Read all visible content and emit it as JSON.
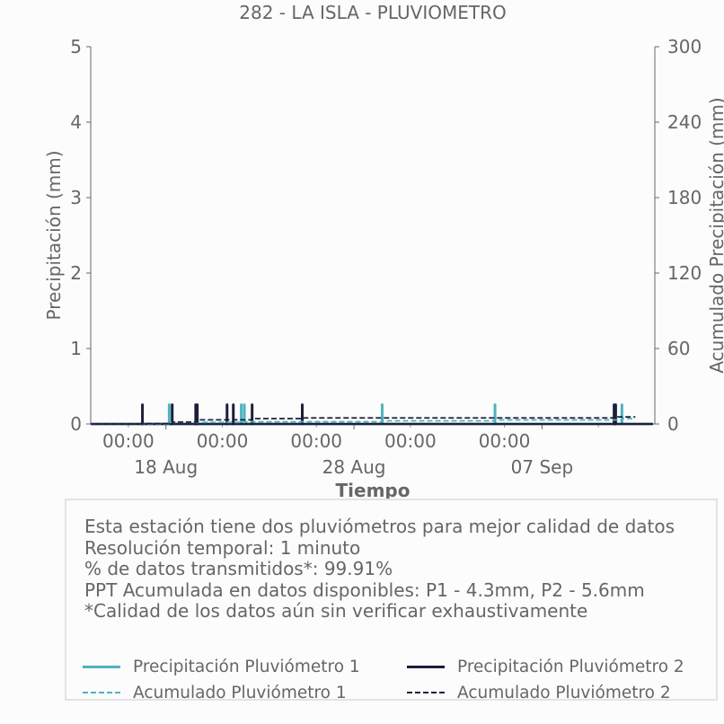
{
  "chart_data": {
    "type": "line",
    "title": "282 - LA ISLA - PLUVIOMETRO",
    "xlabel": "Tiempo",
    "ylabel_left": "Precipitación (mm)",
    "ylabel_right": "Acumulado Precipitación (mm)",
    "ylim_left": [
      0,
      5
    ],
    "ylim_right": [
      0,
      300
    ],
    "yticks_left": [
      "0",
      "1",
      "2",
      "3",
      "4",
      "5"
    ],
    "yticks_right": [
      "0",
      "60",
      "120",
      "180",
      "240",
      "300"
    ],
    "xlim_days": [
      -4.0,
      26.0
    ],
    "x_tick_time_labels": [
      "00:00",
      "00:00",
      "00:00",
      "00:00",
      "00:00"
    ],
    "x_tick_date_labels": [
      "18 Aug",
      "28 Aug",
      "07 Sep"
    ],
    "grid": false,
    "series": [
      {
        "name": "Precipitación Pluviómetro 1",
        "color": "#4eb3bd",
        "style": "solid",
        "x": [
          "2025-08-18 04:10",
          "2025-08-22 00:10",
          "2025-08-22 04:05",
          "2025-08-29 12:00",
          "2025-09-04 12:00",
          "2025-09-11 06:00"
        ],
        "values": [
          0.254,
          0.254,
          0.254,
          0.254,
          0.254,
          0.254
        ]
      },
      {
        "name": "Precipitación Pluviómetro 2",
        "color": "#1c1f3a",
        "style": "solid",
        "x": [
          "2025-08-16 18:00",
          "2025-08-18 08:00",
          "2025-08-19 14:00",
          "2025-08-19 16:00",
          "2025-08-21 06:00",
          "2025-08-21 14:00",
          "2025-08-22 14:00",
          "2025-08-25 06:00",
          "2025-09-10 20:00",
          "2025-09-10 22:00"
        ],
        "values": [
          0.254,
          0.254,
          0.254,
          0.254,
          0.254,
          0.254,
          0.254,
          0.254,
          0.254,
          0.254
        ]
      },
      {
        "name": "Acumulado Pluviómetro 1",
        "color": "#4eb3bd",
        "style": "dashed",
        "x": [
          "2025-08-14 00:00",
          "2025-08-18 04:10",
          "2025-08-22 04:05",
          "2025-08-29 12:00",
          "2025-09-04 12:00",
          "2025-09-11 06:00",
          "2025-09-11 23:00"
        ],
        "values": [
          0,
          1.3,
          1.8,
          2.5,
          3.2,
          4.3,
          4.3
        ]
      },
      {
        "name": "Acumulado Pluviómetro 2",
        "color": "#1c1f3a",
        "style": "dashed",
        "x": [
          "2025-08-14 00:00",
          "2025-08-16 18:00",
          "2025-08-18 08:00",
          "2025-08-19 16:00",
          "2025-08-22 14:00",
          "2025-08-25 06:00",
          "2025-09-10 22:00",
          "2025-09-11 23:00"
        ],
        "values": [
          0,
          0.3,
          1.5,
          3.3,
          4.3,
          4.8,
          5.6,
          5.6
        ]
      }
    ],
    "legend_position": "bottom"
  },
  "info_box": {
    "lines": [
      "Esta estación tiene dos pluviómetros para mejor calidad de datos",
      "Resolución temporal: 1 minuto",
      "% de datos transmitidos*: 99.91%",
      "PPT Acumulada en datos disponibles: P1 - 4.3mm, P2 - 5.6mm",
      "*Calidad de los datos aún sin verificar exhaustivamente"
    ]
  },
  "legend": {
    "items": [
      {
        "label": "Precipitación Pluviómetro 1",
        "color": "#4eb3bd",
        "style": "solid"
      },
      {
        "label": "Precipitación Pluviómetro 2",
        "color": "#1c1f3a",
        "style": "solid"
      },
      {
        "label": "Acumulado Pluviómetro 1",
        "color": "#4eb3bd",
        "style": "dashed"
      },
      {
        "label": "Acumulado Pluviómetro 2",
        "color": "#1c1f3a",
        "style": "dashed"
      }
    ]
  }
}
